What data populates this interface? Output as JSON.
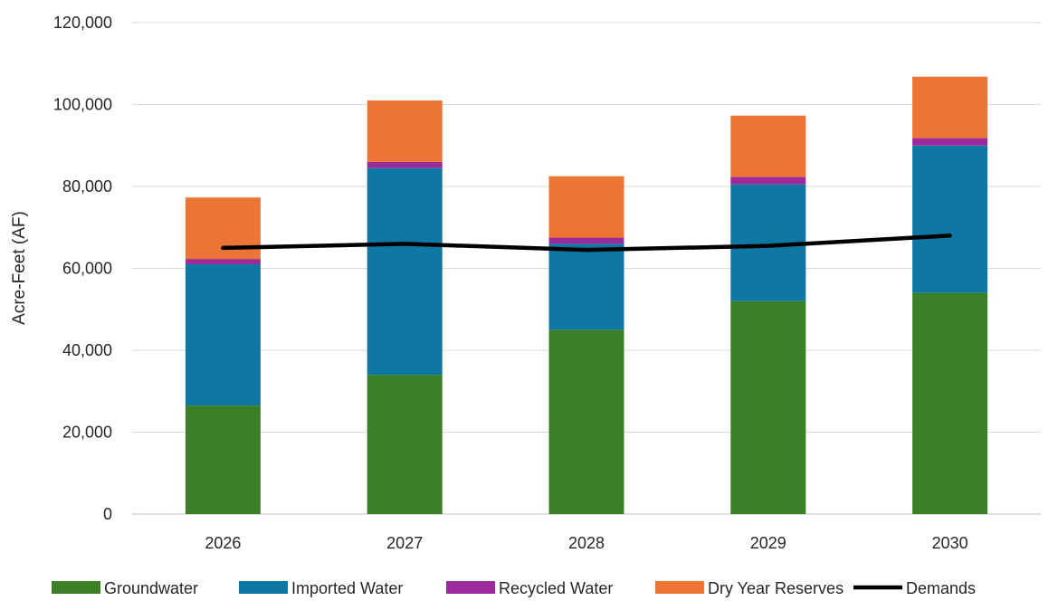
{
  "chart_data": {
    "type": "bar",
    "stacked": true,
    "categories": [
      "2026",
      "2027",
      "2028",
      "2029",
      "2030"
    ],
    "ylabel": "Acre-Feet (AF)",
    "xlabel": "",
    "ylim": [
      0,
      120000
    ],
    "y_ticks": [
      0,
      20000,
      40000,
      60000,
      80000,
      100000,
      120000
    ],
    "y_tick_labels": [
      "0",
      "20,000",
      "40,000",
      "60,000",
      "80,000",
      "100,000",
      "120,000"
    ],
    "grid": "horizontal",
    "legend_position": "bottom",
    "series": [
      {
        "name": "Groundwater",
        "kind": "bar",
        "color": "#3b7f26",
        "values": [
          26500,
          34000,
          45000,
          52000,
          54000
        ]
      },
      {
        "name": "Imported Water",
        "kind": "bar",
        "color": "#0e77a3",
        "values": [
          34500,
          50500,
          21000,
          28500,
          36000
        ]
      },
      {
        "name": "Recycled Water",
        "kind": "bar",
        "color": "#9b2a9a",
        "values": [
          1300,
          1500,
          1500,
          1800,
          1800
        ]
      },
      {
        "name": "Dry Year Reserves",
        "kind": "bar",
        "color": "#ec7535",
        "values": [
          15000,
          15000,
          15000,
          15000,
          15000
        ]
      },
      {
        "name": "Demands",
        "kind": "line",
        "color": "#000000",
        "values": [
          65000,
          66000,
          64500,
          65500,
          68000
        ]
      }
    ]
  }
}
